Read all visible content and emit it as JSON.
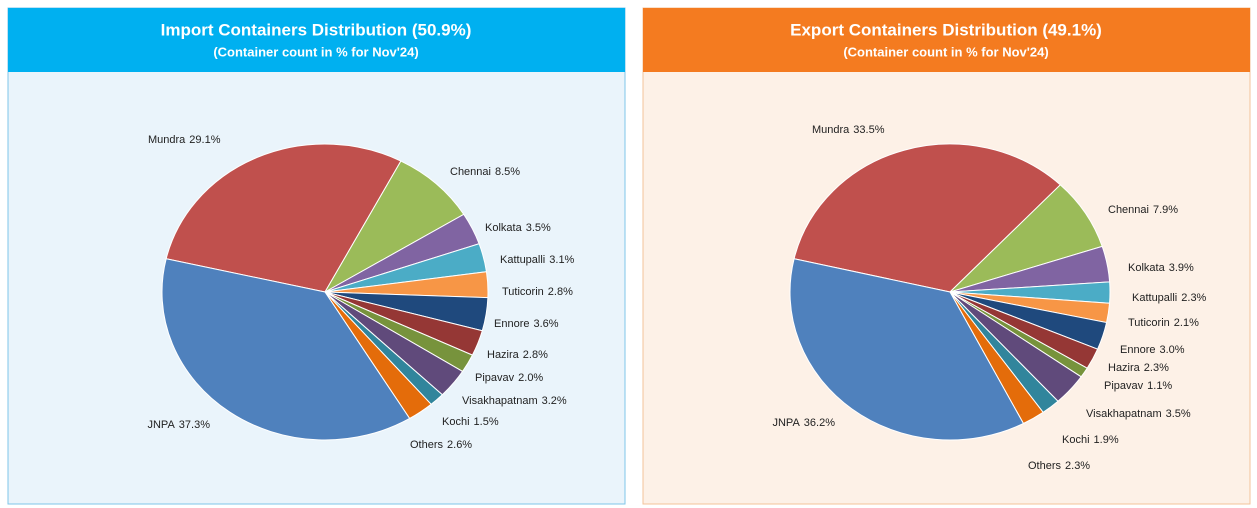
{
  "chart_data": [
    {
      "type": "pie",
      "title": "Import Containers Distribution (50.9%)",
      "subtitle": "(Container count in % for Nov'24)",
      "categories": [
        "Mundra",
        "Chennai",
        "Kolkata",
        "Kattupalli",
        "Tuticorin",
        "Ennore",
        "Hazira",
        "Pipavav",
        "Visakhapatnam",
        "Kochi",
        "Others",
        "JNPA"
      ],
      "values": [
        29.1,
        8.5,
        3.5,
        3.1,
        2.8,
        3.6,
        2.8,
        2.0,
        3.2,
        1.5,
        2.6,
        37.3
      ],
      "value_labels": [
        "29.1%",
        "8.5%",
        "3.5%",
        "3.1%",
        "2.8%",
        "3.6%",
        "2.8%",
        "2.0%",
        "3.2%",
        "1.5%",
        "2.6%",
        "37.3%"
      ],
      "colors": [
        "#c0504d",
        "#9bbb59",
        "#8064a2",
        "#4bacc6",
        "#f79646",
        "#1f497d",
        "#953735",
        "#77933c",
        "#604a7b",
        "#31859c",
        "#e46c0a",
        "#4f81bd"
      ]
    },
    {
      "type": "pie",
      "title": "Export Containers Distribution (49.1%)",
      "subtitle": "(Container count in % for Nov'24)",
      "categories": [
        "Mundra",
        "Chennai",
        "Kolkata",
        "Kattupalli",
        "Tuticorin",
        "Ennore",
        "Hazira",
        "Pipavav",
        "Visakhapatnam",
        "Kochi",
        "Others",
        "JNPA"
      ],
      "values": [
        33.5,
        7.9,
        3.9,
        2.3,
        2.1,
        3.0,
        2.3,
        1.1,
        3.5,
        1.9,
        2.3,
        36.2
      ],
      "value_labels": [
        "33.5%",
        "7.9%",
        "3.9%",
        "2.3%",
        "2.1%",
        "3.0%",
        "2.3%",
        "1.1%",
        "3.5%",
        "1.9%",
        "2.3%",
        "36.2%"
      ],
      "colors": [
        "#c0504d",
        "#9bbb59",
        "#8064a2",
        "#4bacc6",
        "#f79646",
        "#1f497d",
        "#953735",
        "#77933c",
        "#604a7b",
        "#31859c",
        "#e46c0a",
        "#4f81bd"
      ]
    }
  ]
}
